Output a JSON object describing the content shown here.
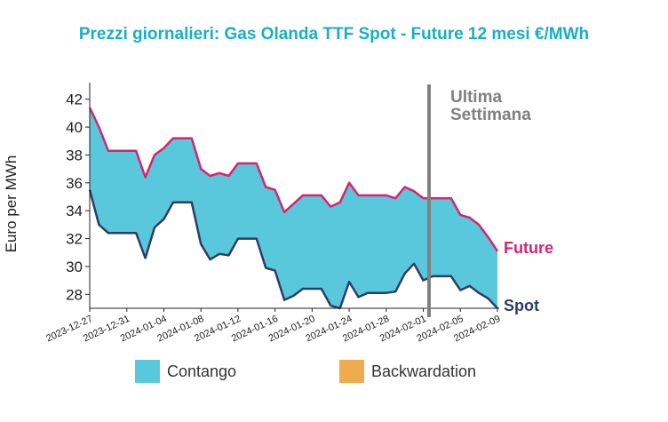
{
  "chart_data": {
    "type": "area",
    "title": "Prezzi giornalieri: Gas Olanda TTF Spot - Future 12 mesi €/MWh",
    "xlabel": "",
    "ylabel": "Euro per MWh",
    "ylim": [
      27,
      43
    ],
    "yticks": [
      28,
      30,
      32,
      34,
      36,
      38,
      40,
      42
    ],
    "x": [
      "2023-12-27",
      "2023-12-28",
      "2023-12-29",
      "2023-12-30",
      "2023-12-31",
      "2024-01-01",
      "2024-01-02",
      "2024-01-03",
      "2024-01-04",
      "2024-01-05",
      "2024-01-06",
      "2024-01-07",
      "2024-01-08",
      "2024-01-09",
      "2024-01-10",
      "2024-01-11",
      "2024-01-12",
      "2024-01-13",
      "2024-01-14",
      "2024-01-15",
      "2024-01-16",
      "2024-01-17",
      "2024-01-18",
      "2024-01-19",
      "2024-01-20",
      "2024-01-21",
      "2024-01-22",
      "2024-01-23",
      "2024-01-24",
      "2024-01-25",
      "2024-01-26",
      "2024-01-27",
      "2024-01-28",
      "2024-01-29",
      "2024-01-30",
      "2024-01-31",
      "2024-02-01",
      "2024-02-02",
      "2024-02-03",
      "2024-02-04",
      "2024-02-05",
      "2024-02-06",
      "2024-02-07",
      "2024-02-08",
      "2024-02-09"
    ],
    "xtick_labels": [
      "2023-12-27",
      "2023-12-31",
      "2024-01-04",
      "2024-01-08",
      "2024-01-12",
      "2024-01-16",
      "2024-01-20",
      "2024-01-24",
      "2024-01-28",
      "2024-02-01",
      "2024-02-05",
      "2024-02-09"
    ],
    "series": [
      {
        "name": "Future",
        "color": "#d6246e",
        "values": [
          41.4,
          40.0,
          38.3,
          38.3,
          38.3,
          38.3,
          36.4,
          38.0,
          38.5,
          39.2,
          39.2,
          39.2,
          37.0,
          36.5,
          36.7,
          36.5,
          37.4,
          37.4,
          37.4,
          35.7,
          35.5,
          33.9,
          34.5,
          35.1,
          35.1,
          35.1,
          34.3,
          34.6,
          36.0,
          35.1,
          35.1,
          35.1,
          35.1,
          34.9,
          35.7,
          35.4,
          34.9,
          34.9,
          34.9,
          34.9,
          33.7,
          33.5,
          33.0,
          32.1,
          31.1
        ]
      },
      {
        "name": "Spot",
        "color": "#2b3e63",
        "values": [
          35.5,
          33.0,
          32.4,
          32.4,
          32.4,
          32.4,
          30.6,
          32.8,
          33.4,
          34.6,
          34.6,
          34.6,
          31.6,
          30.5,
          30.9,
          30.8,
          32.0,
          32.0,
          32.0,
          29.9,
          29.7,
          27.6,
          27.9,
          28.4,
          28.4,
          28.4,
          27.2,
          27.0,
          28.9,
          27.8,
          28.1,
          28.1,
          28.1,
          28.2,
          29.5,
          30.2,
          29.0,
          29.3,
          29.3,
          29.3,
          28.3,
          28.6,
          28.1,
          27.7,
          27.0
        ]
      }
    ],
    "labels": {
      "future": "Future",
      "spot": "Spot"
    },
    "last_week_marker": {
      "x": "2024-02-02",
      "label_line1": "Ultima",
      "label_line2": "Settimana",
      "color": "#808080"
    },
    "legend": [
      {
        "name": "Contango",
        "color": "#5ac8dc"
      },
      {
        "name": "Backwardation",
        "color": "#efac4e"
      }
    ],
    "legend_position": "bottom",
    "grid": false
  }
}
